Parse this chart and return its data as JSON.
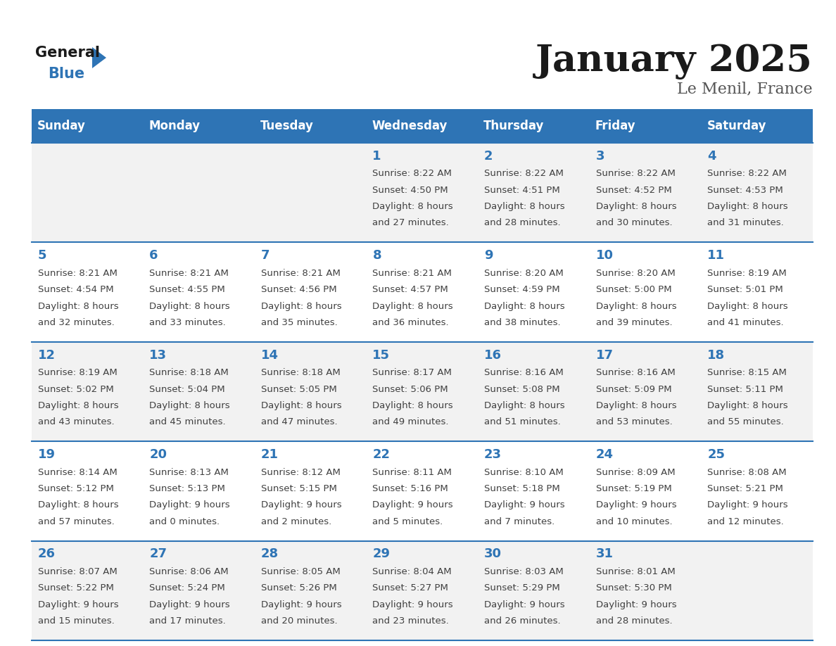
{
  "title": "January 2025",
  "subtitle": "Le Menil, France",
  "days_of_week": [
    "Sunday",
    "Monday",
    "Tuesday",
    "Wednesday",
    "Thursday",
    "Friday",
    "Saturday"
  ],
  "header_bg": "#2E74B5",
  "header_text": "#FFFFFF",
  "row_bg_odd": "#F2F2F2",
  "row_bg_even": "#FFFFFF",
  "separator_color": "#2E74B5",
  "day_num_color": "#2E74B5",
  "cell_text_color": "#404040",
  "title_color": "#1a1a1a",
  "subtitle_color": "#555555",
  "logo_black": "#1a1a1a",
  "logo_blue": "#2E74B5",
  "weeks": [
    [
      {
        "day": "",
        "sunrise": "",
        "sunset": "",
        "daylight_line1": "",
        "daylight_line2": ""
      },
      {
        "day": "",
        "sunrise": "",
        "sunset": "",
        "daylight_line1": "",
        "daylight_line2": ""
      },
      {
        "day": "",
        "sunrise": "",
        "sunset": "",
        "daylight_line1": "",
        "daylight_line2": ""
      },
      {
        "day": "1",
        "sunrise": "8:22 AM",
        "sunset": "4:50 PM",
        "daylight_line1": "Daylight: 8 hours",
        "daylight_line2": "and 27 minutes."
      },
      {
        "day": "2",
        "sunrise": "8:22 AM",
        "sunset": "4:51 PM",
        "daylight_line1": "Daylight: 8 hours",
        "daylight_line2": "and 28 minutes."
      },
      {
        "day": "3",
        "sunrise": "8:22 AM",
        "sunset": "4:52 PM",
        "daylight_line1": "Daylight: 8 hours",
        "daylight_line2": "and 30 minutes."
      },
      {
        "day": "4",
        "sunrise": "8:22 AM",
        "sunset": "4:53 PM",
        "daylight_line1": "Daylight: 8 hours",
        "daylight_line2": "and 31 minutes."
      }
    ],
    [
      {
        "day": "5",
        "sunrise": "8:21 AM",
        "sunset": "4:54 PM",
        "daylight_line1": "Daylight: 8 hours",
        "daylight_line2": "and 32 minutes."
      },
      {
        "day": "6",
        "sunrise": "8:21 AM",
        "sunset": "4:55 PM",
        "daylight_line1": "Daylight: 8 hours",
        "daylight_line2": "and 33 minutes."
      },
      {
        "day": "7",
        "sunrise": "8:21 AM",
        "sunset": "4:56 PM",
        "daylight_line1": "Daylight: 8 hours",
        "daylight_line2": "and 35 minutes."
      },
      {
        "day": "8",
        "sunrise": "8:21 AM",
        "sunset": "4:57 PM",
        "daylight_line1": "Daylight: 8 hours",
        "daylight_line2": "and 36 minutes."
      },
      {
        "day": "9",
        "sunrise": "8:20 AM",
        "sunset": "4:59 PM",
        "daylight_line1": "Daylight: 8 hours",
        "daylight_line2": "and 38 minutes."
      },
      {
        "day": "10",
        "sunrise": "8:20 AM",
        "sunset": "5:00 PM",
        "daylight_line1": "Daylight: 8 hours",
        "daylight_line2": "and 39 minutes."
      },
      {
        "day": "11",
        "sunrise": "8:19 AM",
        "sunset": "5:01 PM",
        "daylight_line1": "Daylight: 8 hours",
        "daylight_line2": "and 41 minutes."
      }
    ],
    [
      {
        "day": "12",
        "sunrise": "8:19 AM",
        "sunset": "5:02 PM",
        "daylight_line1": "Daylight: 8 hours",
        "daylight_line2": "and 43 minutes."
      },
      {
        "day": "13",
        "sunrise": "8:18 AM",
        "sunset": "5:04 PM",
        "daylight_line1": "Daylight: 8 hours",
        "daylight_line2": "and 45 minutes."
      },
      {
        "day": "14",
        "sunrise": "8:18 AM",
        "sunset": "5:05 PM",
        "daylight_line1": "Daylight: 8 hours",
        "daylight_line2": "and 47 minutes."
      },
      {
        "day": "15",
        "sunrise": "8:17 AM",
        "sunset": "5:06 PM",
        "daylight_line1": "Daylight: 8 hours",
        "daylight_line2": "and 49 minutes."
      },
      {
        "day": "16",
        "sunrise": "8:16 AM",
        "sunset": "5:08 PM",
        "daylight_line1": "Daylight: 8 hours",
        "daylight_line2": "and 51 minutes."
      },
      {
        "day": "17",
        "sunrise": "8:16 AM",
        "sunset": "5:09 PM",
        "daylight_line1": "Daylight: 8 hours",
        "daylight_line2": "and 53 minutes."
      },
      {
        "day": "18",
        "sunrise": "8:15 AM",
        "sunset": "5:11 PM",
        "daylight_line1": "Daylight: 8 hours",
        "daylight_line2": "and 55 minutes."
      }
    ],
    [
      {
        "day": "19",
        "sunrise": "8:14 AM",
        "sunset": "5:12 PM",
        "daylight_line1": "Daylight: 8 hours",
        "daylight_line2": "and 57 minutes."
      },
      {
        "day": "20",
        "sunrise": "8:13 AM",
        "sunset": "5:13 PM",
        "daylight_line1": "Daylight: 9 hours",
        "daylight_line2": "and 0 minutes."
      },
      {
        "day": "21",
        "sunrise": "8:12 AM",
        "sunset": "5:15 PM",
        "daylight_line1": "Daylight: 9 hours",
        "daylight_line2": "and 2 minutes."
      },
      {
        "day": "22",
        "sunrise": "8:11 AM",
        "sunset": "5:16 PM",
        "daylight_line1": "Daylight: 9 hours",
        "daylight_line2": "and 5 minutes."
      },
      {
        "day": "23",
        "sunrise": "8:10 AM",
        "sunset": "5:18 PM",
        "daylight_line1": "Daylight: 9 hours",
        "daylight_line2": "and 7 minutes."
      },
      {
        "day": "24",
        "sunrise": "8:09 AM",
        "sunset": "5:19 PM",
        "daylight_line1": "Daylight: 9 hours",
        "daylight_line2": "and 10 minutes."
      },
      {
        "day": "25",
        "sunrise": "8:08 AM",
        "sunset": "5:21 PM",
        "daylight_line1": "Daylight: 9 hours",
        "daylight_line2": "and 12 minutes."
      }
    ],
    [
      {
        "day": "26",
        "sunrise": "8:07 AM",
        "sunset": "5:22 PM",
        "daylight_line1": "Daylight: 9 hours",
        "daylight_line2": "and 15 minutes."
      },
      {
        "day": "27",
        "sunrise": "8:06 AM",
        "sunset": "5:24 PM",
        "daylight_line1": "Daylight: 9 hours",
        "daylight_line2": "and 17 minutes."
      },
      {
        "day": "28",
        "sunrise": "8:05 AM",
        "sunset": "5:26 PM",
        "daylight_line1": "Daylight: 9 hours",
        "daylight_line2": "and 20 minutes."
      },
      {
        "day": "29",
        "sunrise": "8:04 AM",
        "sunset": "5:27 PM",
        "daylight_line1": "Daylight: 9 hours",
        "daylight_line2": "and 23 minutes."
      },
      {
        "day": "30",
        "sunrise": "8:03 AM",
        "sunset": "5:29 PM",
        "daylight_line1": "Daylight: 9 hours",
        "daylight_line2": "and 26 minutes."
      },
      {
        "day": "31",
        "sunrise": "8:01 AM",
        "sunset": "5:30 PM",
        "daylight_line1": "Daylight: 9 hours",
        "daylight_line2": "and 28 minutes."
      },
      {
        "day": "",
        "sunrise": "",
        "sunset": "",
        "daylight_line1": "",
        "daylight_line2": ""
      }
    ]
  ]
}
